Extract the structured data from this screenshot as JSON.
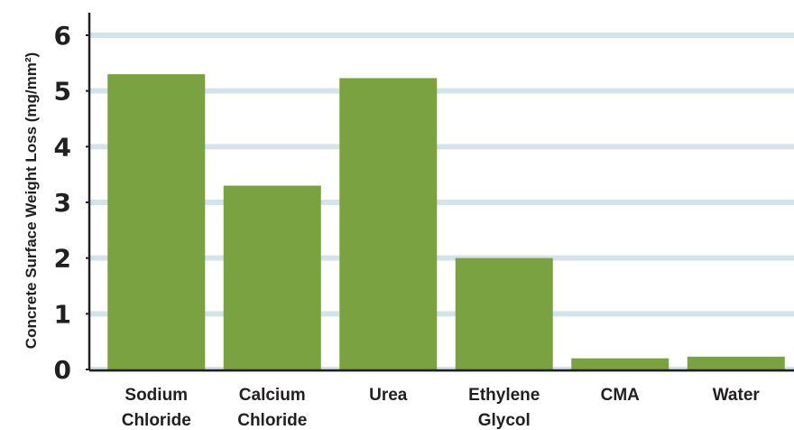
{
  "chart_data": {
    "type": "bar",
    "title": "",
    "xlabel": "",
    "ylabel": "Concrete Surface Weight Loss (mg/mm²)",
    "categories": [
      [
        "Sodium",
        "Chloride"
      ],
      [
        "Calcium",
        "Chloride"
      ],
      [
        "Urea"
      ],
      [
        "Ethylene",
        "Glycol"
      ],
      [
        "CMA"
      ],
      [
        "Water"
      ]
    ],
    "values": [
      5.3,
      3.3,
      5.23,
      2.0,
      0.2,
      0.23
    ],
    "ylim": [
      0,
      6
    ],
    "yticks": [
      0,
      1,
      2,
      3,
      4,
      5,
      6
    ],
    "grid": true,
    "colors": {
      "bar": "#7aa240",
      "grid": "#d3e3ec",
      "axis": "#231f20",
      "text": "#231f20"
    }
  }
}
